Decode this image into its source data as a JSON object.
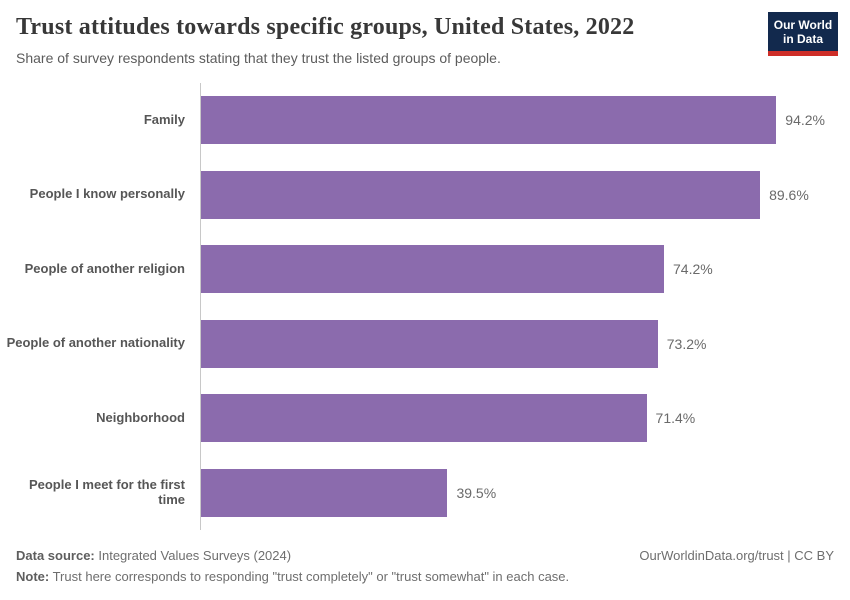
{
  "header": {
    "title": "Trust attitudes towards specific groups, United States, 2022",
    "subtitle": "Share of survey respondents stating that they trust the listed groups of people.",
    "logo": {
      "line1": "Our World",
      "line2": "in Data"
    }
  },
  "chart_data": {
    "type": "bar",
    "orientation": "horizontal",
    "title": "Trust attitudes towards specific groups, United States, 2022",
    "categories": [
      "Family",
      "People I know personally",
      "People of another religion",
      "People of another nationality",
      "Neighborhood",
      "People I meet for the first time"
    ],
    "values": [
      94.2,
      89.6,
      74.2,
      73.2,
      71.4,
      39.5
    ],
    "value_labels": [
      "94.2%",
      "89.6%",
      "74.2%",
      "73.2%",
      "71.4%",
      "39.5%"
    ],
    "xlabel": "",
    "ylabel": "",
    "xlim": [
      0,
      100
    ],
    "grid": false,
    "legend": "none",
    "bar_color": "#8b6bad"
  },
  "footer": {
    "datasource_label": "Data source:",
    "datasource_value": " Integrated Values Surveys (2024)",
    "attribution": "OurWorldinData.org/trust | CC BY",
    "note_label": "Note:",
    "note_value": " Trust here corresponds to responding \"trust completely\" or \"trust somewhat\" in each case."
  },
  "colors": {
    "bar": "#8b6bad",
    "logo_navy": "#12294d",
    "logo_red": "#ce2e28",
    "title_text": "#383838",
    "axis_line": "#c8c8c8"
  }
}
